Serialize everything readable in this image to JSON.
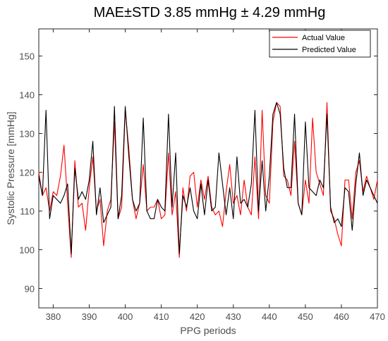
{
  "colors": {
    "actual": "#ff0000",
    "predicted": "#000000",
    "axis": "#262626",
    "tick_text": "#4d4d4d"
  },
  "chart_data": {
    "type": "line",
    "title": "MAE±STD 3.85 mmHg ± 4.29 mmHg",
    "xlabel": "PPG periods",
    "ylabel": "Systolic Pressure [mmHg]",
    "xlim": [
      376,
      470
    ],
    "ylim": [
      85,
      157
    ],
    "xticks": [
      380,
      390,
      400,
      410,
      420,
      430,
      440,
      450,
      460,
      470
    ],
    "yticks": [
      90,
      100,
      110,
      120,
      130,
      140,
      150
    ],
    "grid": false,
    "legend_position": "top-right",
    "x": [
      376,
      377,
      378,
      379,
      380,
      381,
      382,
      383,
      384,
      385,
      386,
      387,
      388,
      389,
      390,
      391,
      392,
      393,
      394,
      395,
      396,
      397,
      398,
      399,
      400,
      401,
      402,
      403,
      404,
      405,
      406,
      407,
      408,
      409,
      410,
      411,
      412,
      413,
      414,
      415,
      416,
      417,
      418,
      419,
      420,
      421,
      422,
      423,
      424,
      425,
      426,
      427,
      428,
      429,
      430,
      431,
      432,
      433,
      434,
      435,
      436,
      437,
      438,
      439,
      440,
      441,
      442,
      443,
      444,
      445,
      446,
      447,
      448,
      449,
      450,
      451,
      452,
      453,
      454,
      455,
      456,
      457,
      458,
      459,
      460,
      461,
      462,
      463,
      464,
      465,
      466,
      467,
      468,
      469,
      470
    ],
    "series": [
      {
        "name": "Actual Value",
        "values": [
          120,
          114,
          116,
          110,
          115,
          114,
          119,
          127,
          112,
          98,
          123,
          111,
          112,
          105,
          116,
          124,
          110,
          113,
          101,
          110,
          113,
          133,
          108,
          111,
          136,
          126,
          113,
          108,
          112,
          122,
          110,
          111,
          111,
          113,
          108,
          109,
          125,
          109,
          115,
          98,
          116,
          110,
          119,
          120,
          111,
          118,
          113,
          119,
          111,
          109,
          110,
          106,
          115,
          122,
          112,
          114,
          109,
          118,
          111,
          109,
          124,
          108,
          136,
          114,
          112,
          133,
          138,
          137,
          119,
          118,
          114,
          128,
          112,
          109,
          118,
          112,
          134,
          120,
          117,
          114,
          138,
          110,
          108,
          104,
          101,
          118,
          118,
          108,
          120,
          123,
          115,
          119,
          116,
          113,
          118
        ]
      },
      {
        "name": "Predicted Value",
        "values": [
          119,
          114,
          136,
          108,
          114,
          113,
          112,
          114,
          117,
          99,
          121,
          113,
          115,
          113,
          118,
          128,
          109,
          116,
          107,
          109,
          111,
          137,
          108,
          114,
          137,
          124,
          113,
          110,
          112,
          134,
          110,
          108,
          108,
          113,
          111,
          110,
          135,
          111,
          125,
          99,
          114,
          111,
          116,
          110,
          108,
          117,
          109,
          118,
          110,
          111,
          125,
          117,
          109,
          116,
          108,
          124,
          112,
          113,
          111,
          117,
          136,
          110,
          123,
          110,
          119,
          135,
          138,
          135,
          121,
          116,
          116,
          135,
          112,
          109,
          133,
          116,
          115,
          114,
          118,
          116,
          135,
          111,
          107,
          108,
          106,
          116,
          115,
          105,
          117,
          125,
          114,
          118,
          116,
          114,
          112
        ]
      }
    ]
  }
}
